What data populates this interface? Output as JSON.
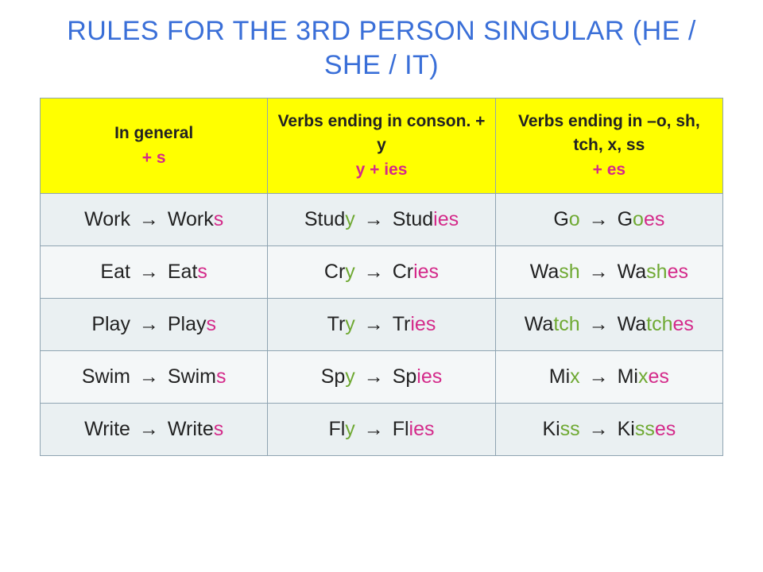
{
  "title_color": "#3a6fd8",
  "title": "RULES FOR THE 3RD PERSON SINGULAR (HE / SHE / IT)",
  "highlight_colors": {
    "black": "#222222",
    "red": "#d42a8a",
    "green": "#6fa933"
  },
  "header_bg": "#ffff00",
  "row_bg_odd": "#eaf0f2",
  "row_bg_even": "#f4f7f8",
  "border_color": "#8fa4b2",
  "columns": [
    {
      "line1": "In general",
      "line2_colored": "+ s",
      "line2_color": "red"
    },
    {
      "line1": "Verbs ending in conson. + y",
      "line2_colored": "y + ies",
      "line2_color": "red"
    },
    {
      "line1": "Verbs ending in –o, sh, tch, x, ss",
      "line2_colored": "+ es",
      "line2_color": "red"
    }
  ],
  "rows": [
    [
      {
        "from": [
          [
            "Work",
            "black"
          ]
        ],
        "to": [
          [
            "Work",
            "black"
          ],
          [
            "s",
            "red"
          ]
        ]
      },
      {
        "from": [
          [
            "Stud",
            "black"
          ],
          [
            "y",
            "green"
          ]
        ],
        "to": [
          [
            "Stud",
            "black"
          ],
          [
            "ies",
            "red"
          ]
        ]
      },
      {
        "from": [
          [
            "G",
            "black"
          ],
          [
            "o",
            "green"
          ]
        ],
        "to": [
          [
            "G",
            "black"
          ],
          [
            "o",
            "green"
          ],
          [
            "es",
            "red"
          ]
        ]
      }
    ],
    [
      {
        "from": [
          [
            "Eat",
            "black"
          ]
        ],
        "to": [
          [
            "Eat",
            "black"
          ],
          [
            "s",
            "red"
          ]
        ]
      },
      {
        "from": [
          [
            "Cr",
            "black"
          ],
          [
            "y",
            "green"
          ]
        ],
        "to": [
          [
            "Cr",
            "black"
          ],
          [
            "ies",
            "red"
          ]
        ]
      },
      {
        "from": [
          [
            "Wa",
            "black"
          ],
          [
            "sh",
            "green"
          ]
        ],
        "to": [
          [
            "Wa",
            "black"
          ],
          [
            "sh",
            "green"
          ],
          [
            "es",
            "red"
          ]
        ]
      }
    ],
    [
      {
        "from": [
          [
            "Play",
            "black"
          ]
        ],
        "to": [
          [
            "Play",
            "black"
          ],
          [
            "s",
            "red"
          ]
        ]
      },
      {
        "from": [
          [
            "Tr",
            "black"
          ],
          [
            "y",
            "green"
          ]
        ],
        "to": [
          [
            "Tr",
            "black"
          ],
          [
            "ies",
            "red"
          ]
        ]
      },
      {
        "from": [
          [
            "Wa",
            "black"
          ],
          [
            "tch",
            "green"
          ]
        ],
        "to": [
          [
            "Wa",
            "black"
          ],
          [
            "tch",
            "green"
          ],
          [
            "es",
            "red"
          ]
        ]
      }
    ],
    [
      {
        "from": [
          [
            "Swim",
            "black"
          ]
        ],
        "to": [
          [
            "Swim",
            "black"
          ],
          [
            "s",
            "red"
          ]
        ]
      },
      {
        "from": [
          [
            "Sp",
            "black"
          ],
          [
            "y",
            "green"
          ]
        ],
        "to": [
          [
            "Sp",
            "black"
          ],
          [
            "ies",
            "red"
          ]
        ]
      },
      {
        "from": [
          [
            "Mi",
            "black"
          ],
          [
            "x",
            "green"
          ]
        ],
        "to": [
          [
            "Mi",
            "black"
          ],
          [
            "x",
            "green"
          ],
          [
            "es",
            "red"
          ]
        ]
      }
    ],
    [
      {
        "from": [
          [
            "Write",
            "black"
          ]
        ],
        "to": [
          [
            "Write",
            "black"
          ],
          [
            "s",
            "red"
          ]
        ]
      },
      {
        "from": [
          [
            "Fl",
            "black"
          ],
          [
            "y",
            "green"
          ]
        ],
        "to": [
          [
            "Fl",
            "black"
          ],
          [
            "ies",
            "red"
          ]
        ]
      },
      {
        "from": [
          [
            "Ki",
            "black"
          ],
          [
            "ss",
            "green"
          ]
        ],
        "to": [
          [
            "Ki",
            "black"
          ],
          [
            "ss",
            "green"
          ],
          [
            "es",
            "red"
          ]
        ]
      }
    ]
  ]
}
